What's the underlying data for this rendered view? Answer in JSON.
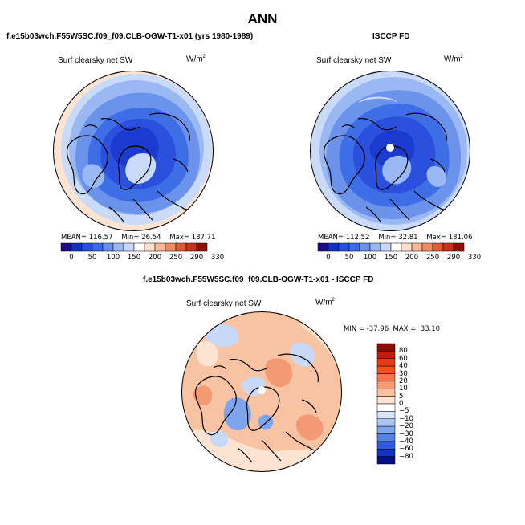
{
  "page_title": "ANN",
  "left_panel": {
    "title": "f.e15b03wch.F55W5SC.f09_f09.CLB-OGW-T1-x01 (yrs 1980-1989)",
    "variable": "Surf clearsky net SW",
    "units": "W/m",
    "units_sup": "2",
    "mean_label": "MEAN=",
    "mean_value": "116.57",
    "min_label": "Min=",
    "min_value": "26.54",
    "max_label": "Max=",
    "max_value": "187.71"
  },
  "right_panel": {
    "title": "ISCCP FD",
    "variable": "Surf clearsky net SW",
    "units": "W/m",
    "units_sup": "2",
    "mean_label": "MEAN=",
    "mean_value": "112.52",
    "min_label": "Min=",
    "min_value": "32.81",
    "max_label": "Max=",
    "max_value": "181.06"
  },
  "diff_panel": {
    "title": "f.e15b03wch.F55W5SC.f09_f09.CLB-OGW-T1-x01 - ISCCP FD",
    "variable": "Surf clearsky net SW",
    "units": "W/m",
    "units_sup": "2",
    "minmax_text": "MIN = -37.96  MAX =  33.10"
  },
  "abs_colorbar": {
    "ticks": [
      "0",
      "50",
      "100",
      "150",
      "200",
      "250",
      "290",
      "330"
    ],
    "colors": [
      "#1c0a8c",
      "#1231c4",
      "#2450e0",
      "#3c6ae6",
      "#6990ec",
      "#9ab6f2",
      "#c7d8f8",
      "#ffffff",
      "#fde0cc",
      "#f9b897",
      "#f08a62",
      "#e55a36",
      "#c9321a",
      "#8e1006"
    ]
  },
  "diff_colorbar": {
    "labels": [
      "80",
      "60",
      "40",
      "30",
      "20",
      "10",
      "5",
      "0",
      "−5",
      "−10",
      "−20",
      "−30",
      "−40",
      "−60",
      "−80"
    ],
    "colors": [
      "#8e0c06",
      "#c41d0c",
      "#e83a14",
      "#f3521c",
      "#f6744a",
      "#f99a76",
      "#fbbf9e",
      "#fde3d2",
      "#ffffff",
      "#d9e5fb",
      "#a9c3f4",
      "#7ea4ee",
      "#5682e8",
      "#2f5be0",
      "#1234c0",
      "#070e8a"
    ]
  },
  "map_colors": {
    "abs_outer": "#fde4d2",
    "abs_ring2": "#c9dbf8",
    "abs_ring3": "#9ab8f3",
    "abs_ring4": "#6b93ec",
    "abs_ring5": "#3e6ee6",
    "abs_core": "#2a50dd",
    "abs_deep": "#1b3bd0",
    "diff_base": "#f7c3a3",
    "diff_light": "#fde3d2",
    "diff_warm": "#f39a74",
    "diff_blue": "#7ea4ee",
    "diff_paleblue": "#c8d9f8",
    "coast": "#000000"
  }
}
